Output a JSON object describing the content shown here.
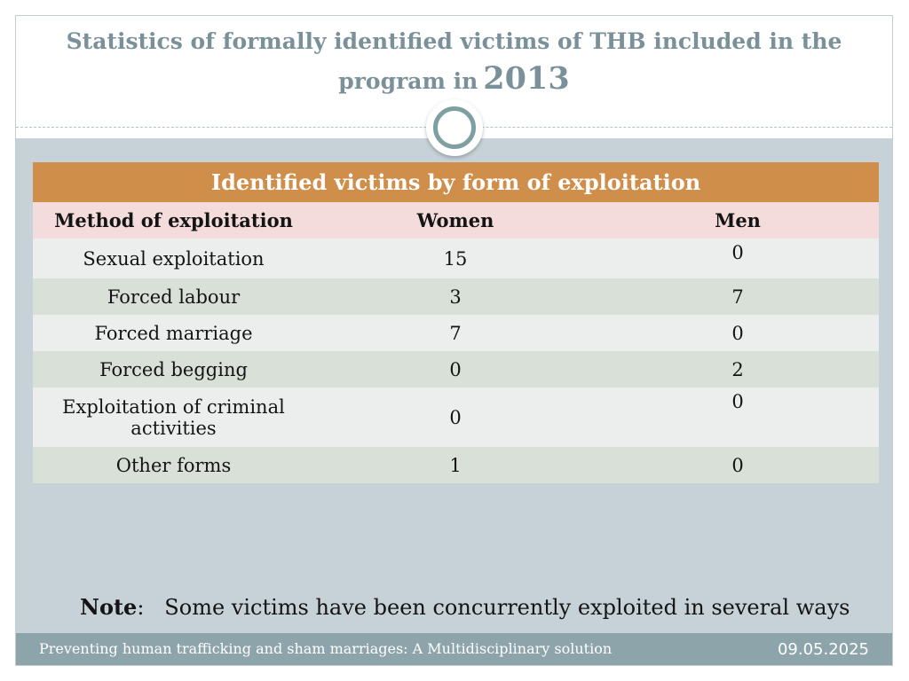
{
  "title": {
    "line1": "Statistics of formally identified victims of THB included in the",
    "line2_prefix": "program in",
    "year": "2013"
  },
  "table": {
    "banner": "Identified victims by form of exploitation",
    "headers": [
      "Method of exploitation",
      "Women",
      "Men"
    ],
    "rows": [
      {
        "method": "Sexual exploitation",
        "women": "15",
        "men": "0"
      },
      {
        "method": "Forced labour",
        "women": "3",
        "men": "7"
      },
      {
        "method": "Forced marriage",
        "women": "7",
        "men": "0"
      },
      {
        "method": "Forced begging",
        "women": "0",
        "men": "2"
      },
      {
        "method": "Exploitation of criminal activities",
        "women": "0",
        "men": "0"
      },
      {
        "method": "Other forms",
        "women": "1",
        "men": "0"
      }
    ]
  },
  "note": {
    "label": "Note",
    "text": "Some victims have been concurrently exploited in several ways"
  },
  "footer": {
    "text": "Preventing human trafficking and sham marriages: A Multidisciplinary solution",
    "date": "09.05.2025"
  },
  "colors": {
    "title": "#7a9199",
    "banner": "#cf8e4a",
    "header_row": "#f3dcdb",
    "content_band": "#c6d2d8",
    "footer": "#8ea4ab"
  }
}
